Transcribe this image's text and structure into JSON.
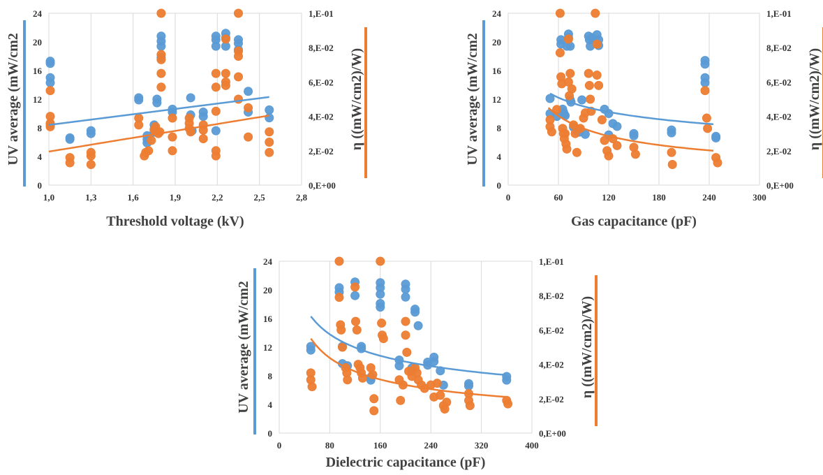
{
  "colors": {
    "uv": "#5b9bd5",
    "eta": "#ed7d31",
    "trend_uv": "#5b9bd5",
    "trend_eta": "#ed7d31"
  },
  "chart_data": [
    {
      "type": "scatter",
      "xlabel": "Threshold voltage (kV)",
      "ylabel_left": "UV average (mW/cm2",
      "ylabel_right": "η ((mW/cm2)/W)",
      "xlim": [
        1.0,
        2.8
      ],
      "xticks": [
        "1,0",
        "1,3",
        "1,6",
        "1,9",
        "2,2",
        "2,5",
        "2,8"
      ],
      "ylim_left": [
        0,
        24
      ],
      "yticks_left": [
        "0",
        "4",
        "8",
        "12",
        "16",
        "20",
        "24"
      ],
      "ylim_right": [
        0,
        0.1
      ],
      "yticks_right": [
        "0,E+00",
        "2,E-02",
        "4,E-02",
        "6,E-02",
        "8,E-02",
        "1,E-01"
      ],
      "grid": "vertical",
      "series": [
        {
          "axis": "left",
          "x": [
            1.01,
            1.01,
            1.01,
            1.01,
            1.01,
            1.15,
            1.15,
            1.3,
            1.3,
            1.64,
            1.64,
            1.7,
            1.7,
            1.7,
            1.75,
            1.75,
            1.75,
            1.77,
            1.77,
            1.8,
            1.8,
            1.8,
            1.8,
            1.88,
            1.88,
            2.01,
            2.01,
            2.02,
            2.1,
            2.1,
            2.19,
            2.19,
            2.19,
            2.19,
            2.26,
            2.26,
            2.26,
            2.35,
            2.35,
            2.35,
            2.42,
            2.42,
            2.57,
            2.57
          ],
          "y": [
            17.3,
            17.0,
            15.0,
            14.3,
            8.4,
            6.6,
            6.4,
            7.6,
            7.2,
            12.2,
            11.9,
            6.9,
            6.4,
            5.9,
            8.4,
            7.8,
            7.4,
            12.0,
            11.5,
            20.8,
            20.1,
            19.4,
            17.8,
            10.6,
            10.2,
            12.2,
            9.8,
            7.6,
            10.2,
            9.6,
            20.8,
            20.3,
            19.4,
            7.6,
            21.2,
            20.6,
            19.4,
            20.3,
            19.8,
            18.9,
            13.1,
            10.2,
            10.5,
            9.4
          ]
        },
        {
          "axis": "right",
          "x": [
            1.01,
            1.01,
            1.01,
            1.01,
            1.15,
            1.15,
            1.3,
            1.3,
            1.3,
            1.64,
            1.64,
            1.68,
            1.69,
            1.71,
            1.73,
            1.75,
            1.76,
            1.78,
            1.79,
            1.8,
            1.8,
            1.8,
            1.8,
            1.8,
            1.88,
            1.88,
            1.88,
            2.0,
            2.0,
            2.0,
            2.01,
            2.1,
            2.1,
            2.1,
            2.19,
            2.19,
            2.19,
            2.19,
            2.19,
            2.26,
            2.26,
            2.26,
            2.26,
            2.35,
            2.35,
            2.35,
            2.35,
            2.35,
            2.42,
            2.42,
            2.57,
            2.57,
            2.57
          ],
          "y": [
            0.055,
            0.04,
            0.036,
            0.034,
            0.016,
            0.013,
            0.019,
            0.017,
            0.012,
            0.039,
            0.035,
            0.017,
            0.019,
            0.02,
            0.026,
            0.032,
            0.034,
            0.03,
            0.031,
            0.1,
            0.076,
            0.073,
            0.065,
            0.057,
            0.039,
            0.028,
            0.02,
            0.039,
            0.036,
            0.033,
            0.031,
            0.035,
            0.032,
            0.027,
            0.065,
            0.057,
            0.043,
            0.02,
            0.017,
            0.085,
            0.065,
            0.06,
            0.058,
            0.1,
            0.078,
            0.075,
            0.063,
            0.05,
            0.045,
            0.028,
            0.031,
            0.025,
            0.019
          ]
        }
      ],
      "trendlines": [
        {
          "axis": "left",
          "type": "linear",
          "x0": 1.0,
          "y0": 8.4,
          "x1": 2.57,
          "y1": 12.3
        },
        {
          "axis": "right",
          "type": "linear",
          "x0": 1.0,
          "y0": 0.0195,
          "x1": 2.57,
          "y1": 0.0405
        }
      ]
    },
    {
      "type": "scatter",
      "xlabel": "Gas capacitance (pF)",
      "ylabel_left": "UV average (mW/cm2",
      "ylabel_right": "η ((mW/cm2)/W)",
      "xlim": [
        0,
        300
      ],
      "xticks": [
        "0",
        "60",
        "120",
        "180",
        "240",
        "300"
      ],
      "ylim_left": [
        0,
        24
      ],
      "yticks_left": [
        "0",
        "4",
        "8",
        "12",
        "16",
        "20",
        "24"
      ],
      "ylim_right": [
        0,
        0.1
      ],
      "yticks_right": [
        "0,E+00",
        "2,E-02",
        "4,E-02",
        "6,E-02",
        "8,E-02",
        "1,E-01"
      ],
      "grid": "vertical",
      "series": [
        {
          "axis": "left",
          "x": [
            50,
            50,
            58,
            63,
            63,
            65,
            66,
            67,
            68,
            70,
            72,
            72,
            74,
            74,
            75,
            78,
            82,
            85,
            88,
            92,
            96,
            97,
            98,
            100,
            104,
            106,
            108,
            108,
            115,
            120,
            120,
            125,
            130,
            150,
            150,
            195,
            195,
            235,
            235,
            235,
            235,
            248,
            248
          ],
          "y": [
            12.1,
            10.0,
            9.6,
            20.3,
            19.7,
            10.6,
            10.2,
            9.9,
            9.7,
            19.4,
            21.1,
            20.6,
            19.4,
            11.9,
            11.6,
            8.1,
            7.6,
            7.4,
            11.9,
            7.1,
            20.8,
            20.3,
            19.4,
            20.6,
            20.1,
            21.0,
            20.3,
            19.5,
            10.6,
            10.0,
            7.0,
            8.6,
            8.2,
            7.2,
            6.9,
            7.7,
            7.3,
            17.4,
            16.9,
            15.0,
            14.3,
            6.8,
            6.6
          ]
        },
        {
          "axis": "right",
          "x": [
            50,
            50,
            52,
            58,
            62,
            62,
            63,
            64,
            65,
            66,
            67,
            68,
            69,
            70,
            72,
            72,
            73,
            74,
            76,
            78,
            80,
            82,
            86,
            90,
            92,
            96,
            97,
            98,
            99,
            104,
            106,
            106,
            108,
            112,
            115,
            118,
            120,
            125,
            130,
            150,
            152,
            195,
            196,
            235,
            237,
            238,
            248,
            250
          ],
          "y": [
            0.038,
            0.034,
            0.031,
            0.044,
            0.1,
            0.077,
            0.063,
            0.059,
            0.033,
            0.03,
            0.027,
            0.03,
            0.024,
            0.021,
            0.085,
            0.06,
            0.052,
            0.065,
            0.056,
            0.035,
            0.03,
            0.019,
            0.033,
            0.039,
            0.042,
            0.065,
            0.058,
            0.05,
            0.043,
            0.1,
            0.082,
            0.064,
            0.058,
            0.038,
            0.026,
            0.02,
            0.017,
            0.027,
            0.023,
            0.022,
            0.018,
            0.019,
            0.012,
            0.055,
            0.039,
            0.033,
            0.016,
            0.013
          ]
        }
      ],
      "trendlines": [
        {
          "axis": "left",
          "type": "power",
          "x0": 50,
          "y0": 12.8,
          "x1": 245,
          "y1": 8.5
        },
        {
          "axis": "right",
          "type": "power",
          "x0": 48,
          "y0": 0.045,
          "x1": 245,
          "y1": 0.02
        }
      ]
    },
    {
      "type": "scatter",
      "xlabel": "Dielectric capacitance (pF)",
      "ylabel_left": "UV average (mW/cm2",
      "ylabel_right": "η ((mW/cm2)/W)",
      "xlim": [
        0,
        400
      ],
      "xticks": [
        "0",
        "80",
        "160",
        "240",
        "320",
        "400"
      ],
      "ylim_left": [
        0,
        24
      ],
      "yticks_left": [
        "0",
        "4",
        "8",
        "12",
        "16",
        "20",
        "24"
      ],
      "ylim_right": [
        0,
        0.1
      ],
      "yticks_right": [
        "0,E+00",
        "2,E-02",
        "4,E-02",
        "6,E-02",
        "8,E-02",
        "1,E-01"
      ],
      "grid": "vertical",
      "series": [
        {
          "axis": "left",
          "x": [
            50,
            50,
            95,
            95,
            100,
            100,
            108,
            120,
            120,
            130,
            130,
            145,
            145,
            160,
            160,
            160,
            160,
            160,
            190,
            190,
            200,
            200,
            200,
            210,
            210,
            215,
            215,
            220,
            235,
            235,
            245,
            245,
            255,
            260,
            300,
            300,
            360,
            360
          ],
          "y": [
            12.1,
            11.6,
            20.3,
            19.7,
            12.1,
            9.7,
            9.4,
            21.1,
            19.2,
            12.1,
            11.8,
            7.8,
            7.4,
            21.0,
            20.3,
            19.4,
            18.1,
            17.6,
            10.2,
            9.4,
            20.8,
            20.1,
            19.0,
            9.1,
            8.6,
            17.3,
            16.9,
            15.0,
            9.9,
            9.5,
            10.6,
            10.0,
            8.7,
            6.7,
            6.9,
            6.6,
            7.9,
            7.4
          ]
        },
        {
          "axis": "right",
          "x": [
            50,
            50,
            52,
            95,
            95,
            97,
            98,
            100,
            105,
            107,
            108,
            120,
            121,
            123,
            125,
            128,
            130,
            132,
            145,
            148,
            150,
            150,
            160,
            162,
            163,
            165,
            190,
            192,
            196,
            200,
            200,
            202,
            205,
            210,
            215,
            218,
            220,
            225,
            230,
            240,
            245,
            250,
            255,
            260,
            262,
            265,
            300,
            300,
            302,
            360,
            362
          ],
          "y": [
            0.035,
            0.031,
            0.027,
            0.1,
            0.079,
            0.063,
            0.06,
            0.05,
            0.038,
            0.035,
            0.031,
            0.085,
            0.065,
            0.06,
            0.04,
            0.038,
            0.035,
            0.032,
            0.038,
            0.034,
            0.02,
            0.013,
            0.1,
            0.064,
            0.057,
            0.055,
            0.031,
            0.019,
            0.028,
            0.065,
            0.057,
            0.047,
            0.036,
            0.033,
            0.038,
            0.035,
            0.031,
            0.028,
            0.026,
            0.028,
            0.021,
            0.029,
            0.022,
            0.016,
            0.014,
            0.018,
            0.023,
            0.019,
            0.016,
            0.019,
            0.017
          ]
        }
      ],
      "trendlines": [
        {
          "axis": "left",
          "type": "power",
          "x0": 50,
          "y0": 16.3,
          "x1": 360,
          "y1": 8.1
        },
        {
          "axis": "right",
          "type": "power",
          "x0": 50,
          "y0": 0.055,
          "x1": 360,
          "y1": 0.021
        }
      ]
    }
  ]
}
